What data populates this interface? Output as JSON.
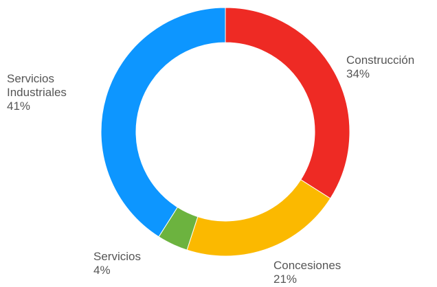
{
  "chart_data": {
    "type": "pie",
    "donut": true,
    "title": "",
    "slices": [
      {
        "name": "Construcción",
        "label_lines": [
          "Construcción"
        ],
        "percent_label": "34%",
        "value": 34,
        "color": "#ee2a24",
        "label_side": "right"
      },
      {
        "name": "Concesiones",
        "label_lines": [
          "Concesiones"
        ],
        "percent_label": "21%",
        "value": 21,
        "color": "#fbb900",
        "label_side": "right"
      },
      {
        "name": "Servicios",
        "label_lines": [
          "Servicios"
        ],
        "percent_label": "4%",
        "value": 4,
        "color": "#6cb33f",
        "label_side": "left"
      },
      {
        "name": "Servicios Industriales",
        "label_lines": [
          "Servicios",
          "Industriales"
        ],
        "percent_label": "41%",
        "value": 41,
        "color": "#0d96ff",
        "label_side": "left"
      }
    ]
  }
}
